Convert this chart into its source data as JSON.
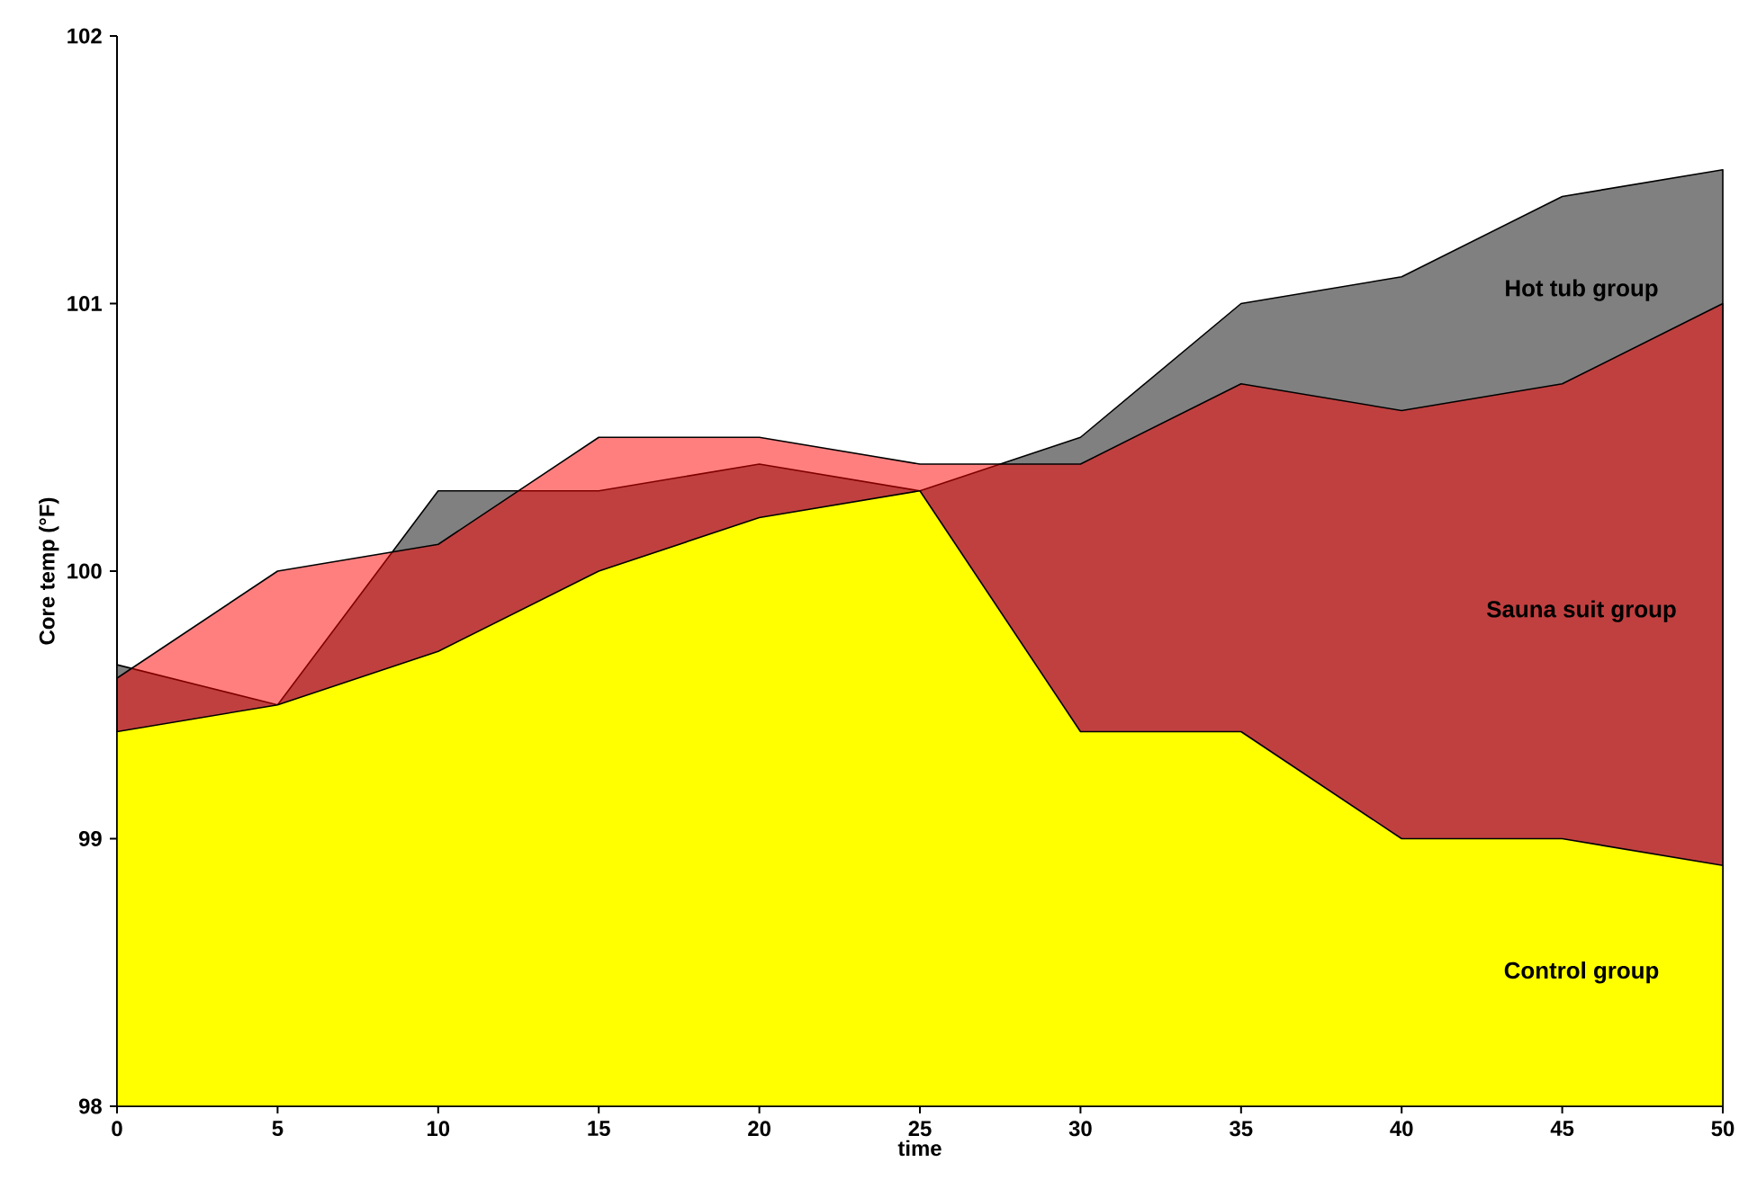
{
  "chart_data": {
    "type": "area",
    "xlabel": "time",
    "ylabel": "Core temp (°F)",
    "x": [
      0,
      5,
      10,
      15,
      20,
      25,
      30,
      35,
      40,
      45,
      50
    ],
    "series": [
      {
        "name": "Hot tub group",
        "color": "#808080",
        "values": [
          99.65,
          99.5,
          100.3,
          100.3,
          100.4,
          100.3,
          100.5,
          101.0,
          101.1,
          101.4,
          101.5
        ]
      },
      {
        "name": "Sauna suit group",
        "color": "#ff0000",
        "values": [
          99.6,
          100.0,
          100.1,
          100.5,
          100.5,
          100.4,
          100.4,
          100.7,
          100.6,
          100.7,
          101.0
        ]
      },
      {
        "name": "Control group",
        "color": "#ffff00",
        "values": [
          99.4,
          99.5,
          99.7,
          100.0,
          100.2,
          100.3,
          99.4,
          99.4,
          99.0,
          99.0,
          98.9
        ]
      }
    ],
    "xlim": [
      0,
      50
    ],
    "ylim": [
      98,
      102
    ],
    "xticks": [
      0,
      5,
      10,
      15,
      20,
      25,
      30,
      35,
      40,
      45,
      50
    ],
    "yticks": [
      98,
      99,
      100,
      101,
      102
    ]
  }
}
